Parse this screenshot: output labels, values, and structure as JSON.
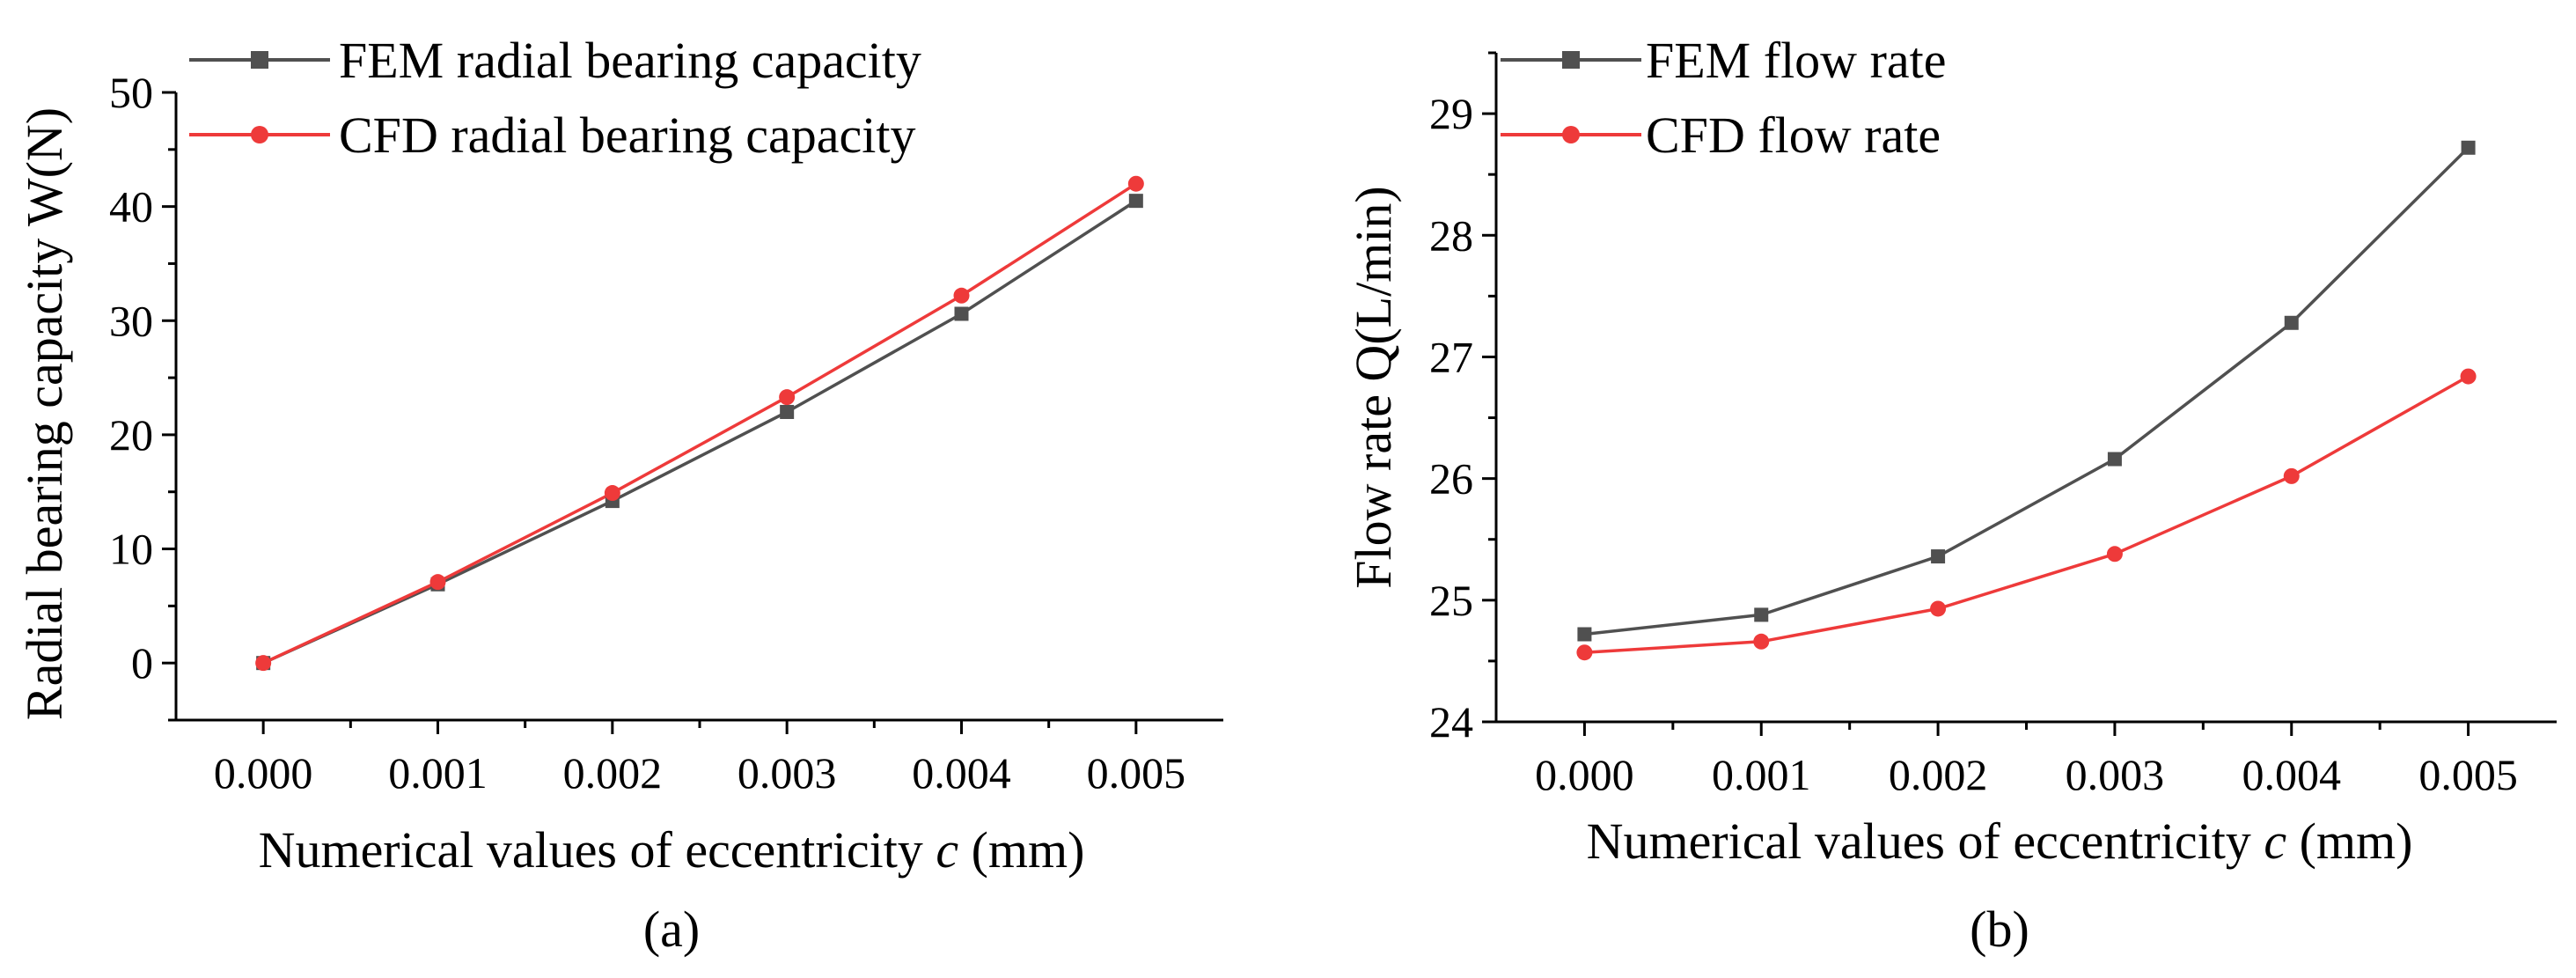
{
  "chart_data": [
    {
      "type": "line",
      "caption": "(a)",
      "xlabel_prefix": "Numerical values of eccentricity ",
      "xlabel_var": "c",
      "xlabel_unit": " (mm)",
      "ylabel": "Radial bearing capacity  W(N)",
      "categories": [
        "0.000",
        "0.001",
        "0.002",
        "0.003",
        "0.004",
        "0.005"
      ],
      "x": [
        0.0,
        0.001,
        0.002,
        0.003,
        0.004,
        0.005
      ],
      "xlim": [
        -0.0005,
        0.0055
      ],
      "ylim": [
        -5,
        50
      ],
      "yticks": [
        0,
        10,
        20,
        30,
        40,
        50
      ],
      "grid": false,
      "legend_position": "top-left",
      "series": [
        {
          "name": "FEM radial bearing capacity",
          "color": "#505050",
          "marker": "square",
          "values": [
            0,
            6.9,
            14.2,
            22.0,
            30.6,
            40.5
          ]
        },
        {
          "name": "CFD radial bearing capacity",
          "color": "#ee3a3a",
          "marker": "circle",
          "values": [
            0,
            7.1,
            14.9,
            23.3,
            32.2,
            42.0
          ]
        }
      ]
    },
    {
      "type": "line",
      "caption": "(b)",
      "xlabel_prefix": "Numerical values of eccentricity ",
      "xlabel_var": "c",
      "xlabel_unit": " (mm)",
      "ylabel": "Flow rate  Q(L/min)",
      "categories": [
        "0.000",
        "0.001",
        "0.002",
        "0.003",
        "0.004",
        "0.005"
      ],
      "x": [
        0.0,
        0.001,
        0.002,
        0.003,
        0.004,
        0.005
      ],
      "xlim": [
        -0.0005,
        0.0055
      ],
      "ylim": [
        24,
        29.5
      ],
      "yticks": [
        24,
        25,
        26,
        27,
        28,
        29
      ],
      "grid": false,
      "legend_position": "top-left",
      "series": [
        {
          "name": "FEM flow rate",
          "color": "#505050",
          "marker": "square",
          "values": [
            24.72,
            24.88,
            25.36,
            26.16,
            27.28,
            28.72
          ]
        },
        {
          "name": "CFD flow rate",
          "color": "#ee3a3a",
          "marker": "circle",
          "values": [
            24.57,
            24.66,
            24.93,
            25.38,
            26.02,
            26.84
          ]
        }
      ]
    }
  ]
}
